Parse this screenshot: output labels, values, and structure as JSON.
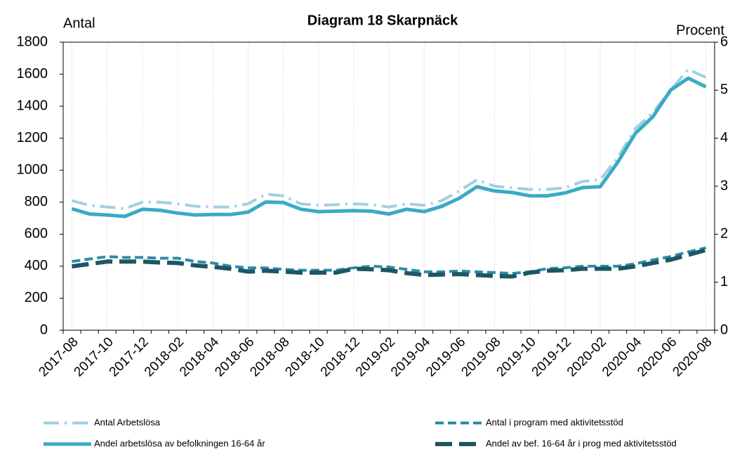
{
  "chart_data": {
    "type": "line",
    "title": "Diagram 18 Skarpnäck",
    "y_label": "Antal",
    "y2_label": "Procent",
    "categories": [
      "2017-08",
      null,
      "2017-10",
      null,
      "2017-12",
      null,
      "2018-02",
      null,
      "2018-04",
      null,
      "2018-06",
      null,
      "2018-08",
      null,
      "2018-10",
      null,
      "2018-12",
      null,
      "2019-02",
      null,
      "2019-04",
      null,
      "2019-06",
      null,
      "2019-08",
      null,
      "2019-10",
      null,
      "2019-12",
      null,
      "2020-02",
      null,
      "2020-04",
      null,
      "2020-06",
      null,
      "2020-08"
    ],
    "ylim": [
      0,
      1800
    ],
    "yticks": [
      0,
      200,
      400,
      600,
      800,
      1000,
      1200,
      1400,
      1600,
      1800
    ],
    "y2lim": [
      0,
      6
    ],
    "y2ticks": [
      0,
      1,
      2,
      3,
      4,
      5,
      6
    ],
    "grid": true,
    "series": [
      {
        "name": "Antal Arbetslösa",
        "color": "#9fd0e1",
        "dash": "dashdot",
        "values": [
          810,
          780,
          770,
          760,
          800,
          800,
          790,
          775,
          770,
          770,
          790,
          850,
          840,
          790,
          780,
          785,
          790,
          785,
          770,
          790,
          780,
          810,
          870,
          940,
          900,
          890,
          880,
          880,
          890,
          930,
          940,
          1080,
          1260,
          1360,
          1500,
          1630,
          1580
        ]
      },
      {
        "name": "Antal i program med aktivitetsstöd",
        "color": "#2b8ea6",
        "dash": "dashed",
        "values": [
          430,
          445,
          460,
          455,
          455,
          450,
          450,
          430,
          420,
          400,
          390,
          390,
          380,
          375,
          375,
          375,
          390,
          400,
          395,
          380,
          365,
          365,
          370,
          365,
          360,
          355,
          365,
          385,
          390,
          400,
          400,
          400,
          415,
          440,
          460,
          490,
          515
        ]
      },
      {
        "name": "Andel arbetslösa av befolkningen 16-64 år",
        "color": "#3aaac5",
        "dash": "solid",
        "axis": "y2",
        "values": [
          2.53,
          2.42,
          2.4,
          2.37,
          2.52,
          2.5,
          2.44,
          2.4,
          2.41,
          2.41,
          2.46,
          2.67,
          2.66,
          2.52,
          2.47,
          2.48,
          2.49,
          2.48,
          2.42,
          2.52,
          2.47,
          2.58,
          2.75,
          2.99,
          2.9,
          2.87,
          2.8,
          2.8,
          2.86,
          2.97,
          2.99,
          3.5,
          4.1,
          4.45,
          5.0,
          5.25,
          5.07
        ]
      },
      {
        "name": "Andel av bef. 16-64 år i prog med aktivitetsstöd",
        "color": "#1e5664",
        "dash": "longdash",
        "axis": "y2",
        "values": [
          1.33,
          1.38,
          1.43,
          1.43,
          1.43,
          1.41,
          1.4,
          1.35,
          1.32,
          1.28,
          1.22,
          1.24,
          1.22,
          1.2,
          1.2,
          1.2,
          1.28,
          1.27,
          1.25,
          1.19,
          1.15,
          1.16,
          1.17,
          1.15,
          1.13,
          1.12,
          1.2,
          1.24,
          1.25,
          1.28,
          1.28,
          1.28,
          1.33,
          1.4,
          1.47,
          1.57,
          1.67
        ]
      }
    ]
  }
}
